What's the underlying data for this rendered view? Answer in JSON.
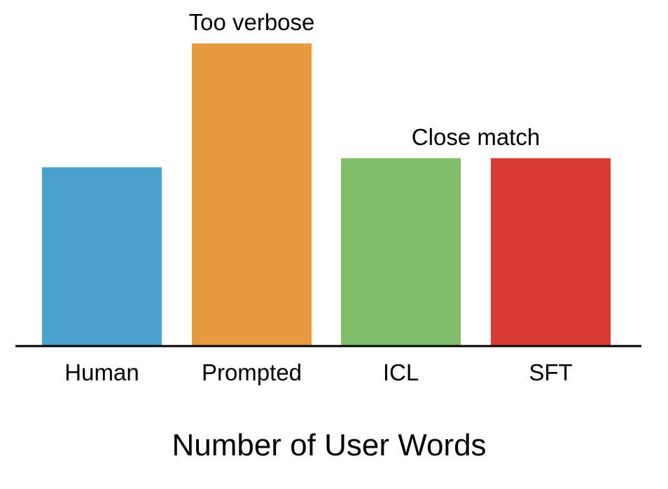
{
  "chart_data": {
    "type": "bar",
    "title": "",
    "xlabel": "Number of User Words",
    "ylabel": "",
    "categories": [
      "Human",
      "Prompted",
      "ICL",
      "SFT"
    ],
    "values": [
      59,
      100,
      62,
      62
    ],
    "ylim": [
      0,
      100
    ],
    "grid": false,
    "legend": "none",
    "colors": [
      "#4BA1CC",
      "#E99A3F",
      "#81BE6A",
      "#DA3A34"
    ],
    "annotations": [
      {
        "text": "Too verbose",
        "categories": [
          "Prompted"
        ]
      },
      {
        "text": "Close match",
        "categories": [
          "ICL",
          "SFT"
        ]
      }
    ]
  }
}
